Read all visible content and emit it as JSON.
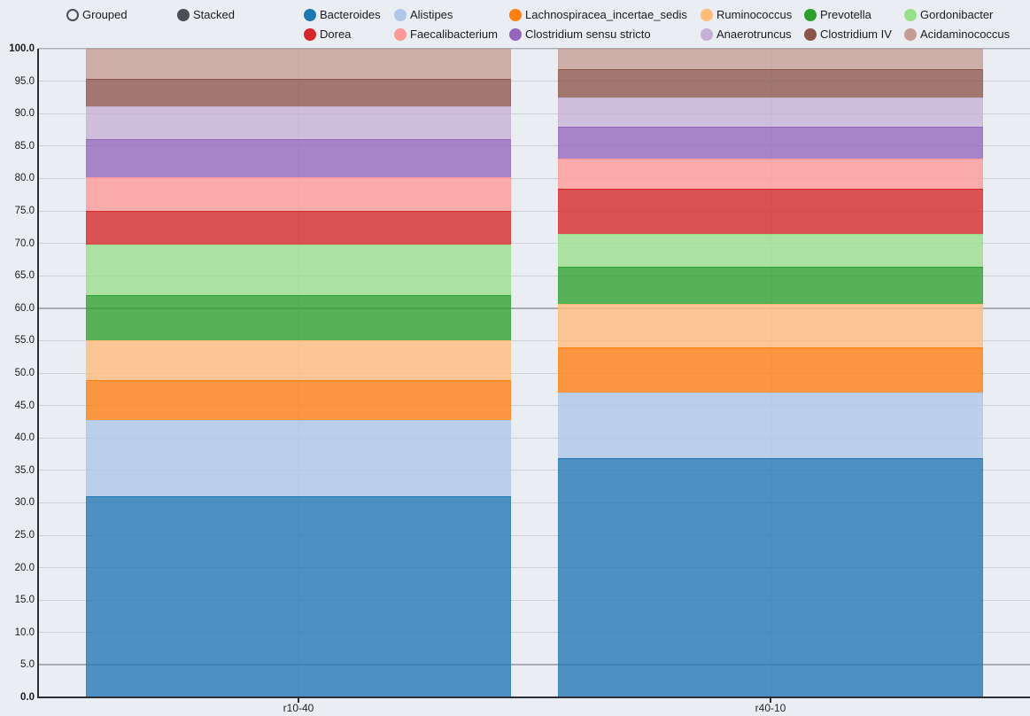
{
  "controls": {
    "options": [
      {
        "label": "Grouped",
        "selected": false
      },
      {
        "label": "Stacked",
        "selected": true
      }
    ]
  },
  "chart_data": {
    "type": "bar",
    "stacked": true,
    "categories": [
      "r10-40",
      "r40-10"
    ],
    "series": [
      {
        "name": "Bacteroides",
        "color": "#1f77b4",
        "values": [
          31.0,
          36.9
        ]
      },
      {
        "name": "Alistipes",
        "color": "#aec7e8",
        "values": [
          11.7,
          10.1
        ]
      },
      {
        "name": "Lachnospiracea_incertae_sedis",
        "color": "#ff7f0e",
        "values": [
          6.2,
          7.0
        ]
      },
      {
        "name": "Ruminococcus",
        "color": "#ffbb78",
        "values": [
          6.2,
          6.6
        ]
      },
      {
        "name": "Prevotella",
        "color": "#2ca02c",
        "values": [
          6.9,
          5.8
        ]
      },
      {
        "name": "Gordonibacter",
        "color": "#98df8a",
        "values": [
          7.8,
          5.0
        ]
      },
      {
        "name": "Dorea",
        "color": "#d62728",
        "values": [
          5.2,
          7.0
        ]
      },
      {
        "name": "Faecalibacterium",
        "color": "#ff9896",
        "values": [
          5.2,
          4.7
        ]
      },
      {
        "name": "Clostridium sensu stricto",
        "color": "#9467bd",
        "values": [
          5.9,
          4.9
        ]
      },
      {
        "name": "Anaerotruncus",
        "color": "#c5b0d5",
        "values": [
          5.0,
          4.5
        ]
      },
      {
        "name": "Clostridium IV",
        "color": "#8c564b",
        "values": [
          4.3,
          4.3
        ]
      },
      {
        "name": "Acidaminococcus",
        "color": "#c49c94",
        "values": [
          4.6,
          3.2
        ]
      }
    ],
    "ylim": [
      0,
      100
    ],
    "ytick_step": 5,
    "ytick_decimals": 1,
    "bold_ytick_values": [
      0,
      100
    ],
    "emphasized_gridlines": [
      5,
      60
    ],
    "grid": true,
    "legend_position": "top",
    "bar_fill_opacity": 0.78
  },
  "theme": {
    "background": "#eaedf2",
    "grid_color": "#ccd0d7",
    "grid_emphasis_color": "#a7acb5",
    "axis_color": "#2b2f35",
    "text_color": "#1a1c1f",
    "radio_color": "#4b4e52"
  }
}
